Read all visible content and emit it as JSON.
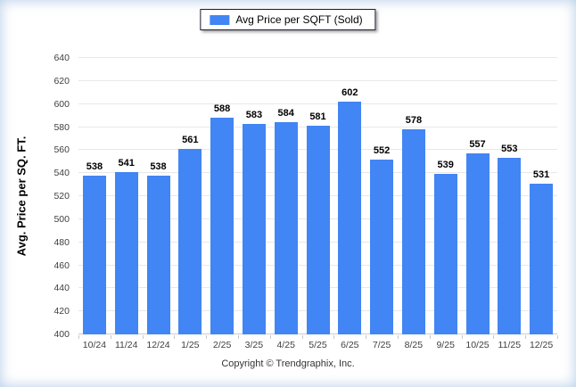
{
  "legend": {
    "label": "Avg Price per SQFT (Sold)",
    "swatch_color": "#4285f4"
  },
  "footer": {
    "copyright": "Copyright © Trendgraphix, Inc."
  },
  "chart_data": {
    "type": "bar",
    "title": "",
    "xlabel": "",
    "ylabel": "Avg. Price per SQ. FT.",
    "series_name": "Avg Price per SQFT (Sold)",
    "categories": [
      "10/24",
      "11/24",
      "12/24",
      "1/25",
      "2/25",
      "3/25",
      "4/25",
      "5/25",
      "6/25",
      "7/25",
      "8/25",
      "9/25",
      "10/25",
      "11/25",
      "12/25"
    ],
    "values": [
      538,
      541,
      538,
      561,
      588,
      583,
      584,
      581,
      602,
      552,
      578,
      539,
      557,
      553,
      531
    ],
    "ylim": [
      400,
      640
    ],
    "ytick_step": 20,
    "grid": "horizontal",
    "legend_position": "top-center",
    "bar_color": "#4285f4",
    "value_labels": true
  }
}
